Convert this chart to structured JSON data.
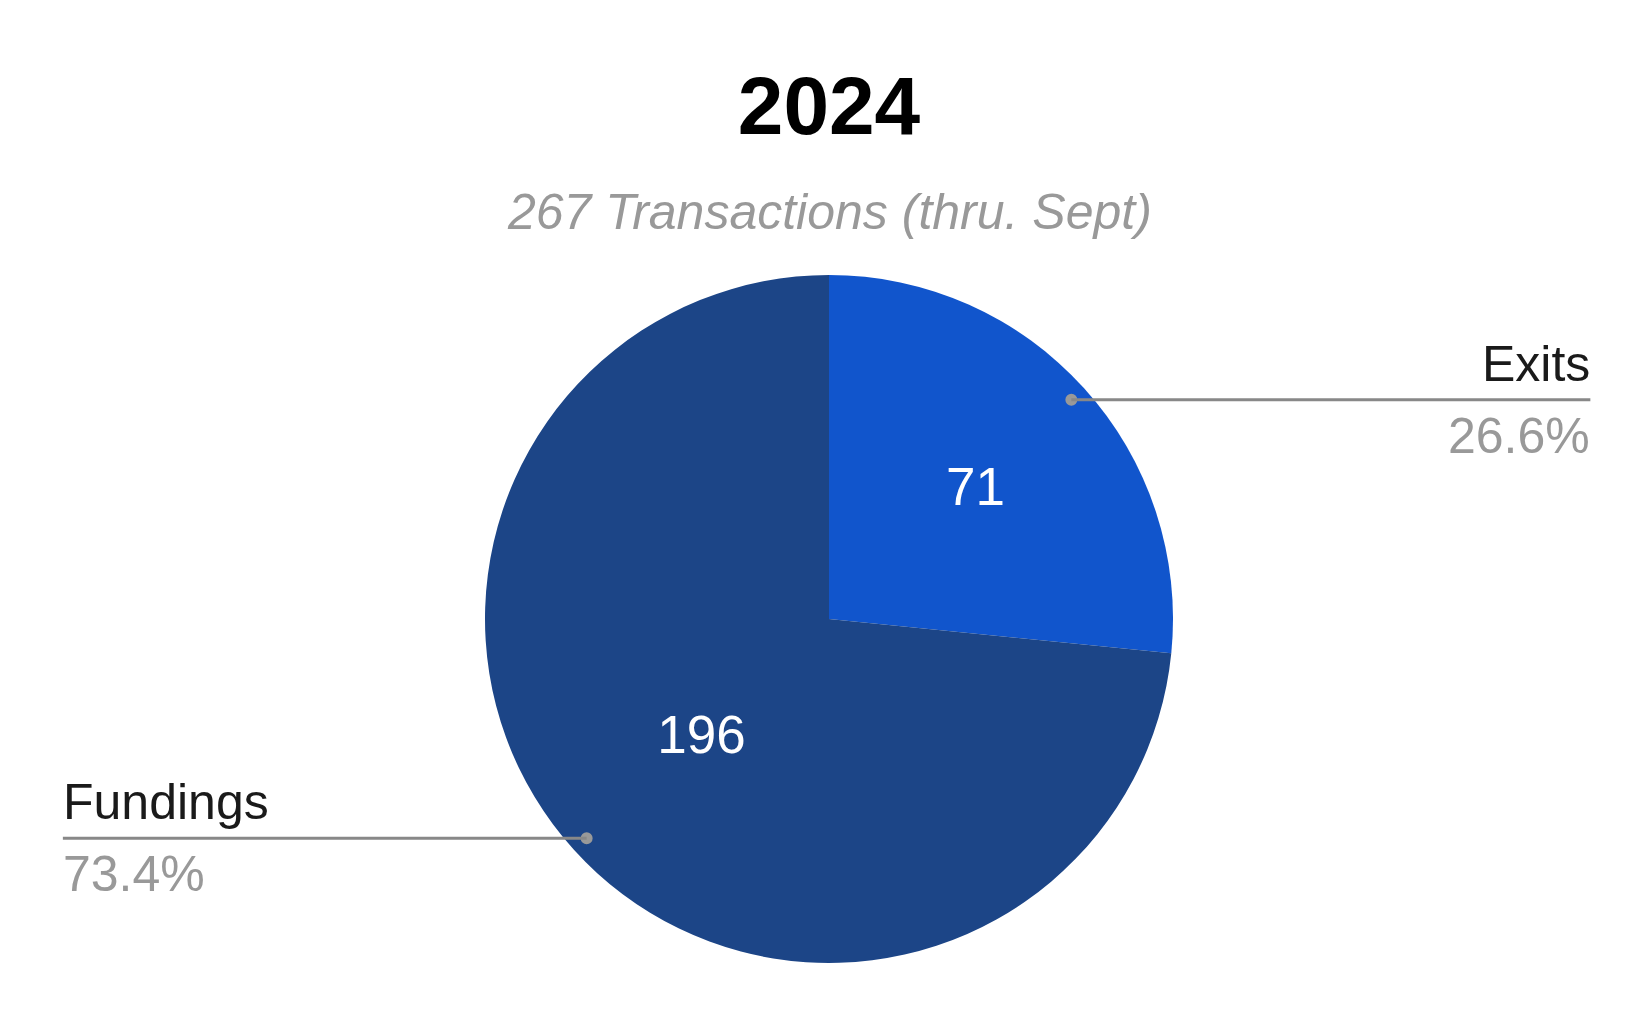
{
  "chart_data": {
    "type": "pie",
    "title": "2024",
    "subtitle": "267 Transactions (thru. Sept)",
    "categories": [
      "Exits",
      "Fundings"
    ],
    "values": [
      71,
      196
    ],
    "colors": [
      "#1155cc",
      "#1c4587"
    ],
    "data_labels": true,
    "annotations": [
      "26.6%",
      "73.4%"
    ],
    "legend": false
  }
}
